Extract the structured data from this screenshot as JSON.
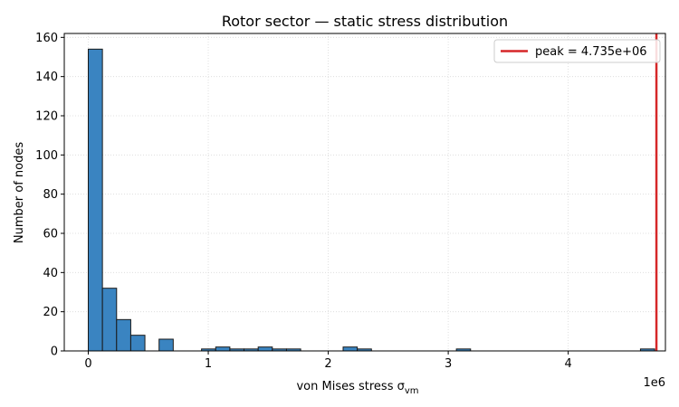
{
  "chart_data": {
    "type": "bar",
    "title": "Rotor sector — static stress distribution",
    "xlabel": "von Mises stress σ",
    "xlabel_subscript": "vm",
    "ylabel": "Number of nodes",
    "x_offset_label": "1e6",
    "xlim": [
      -200000,
      4810000
    ],
    "ylim": [
      0,
      162
    ],
    "x_ticks": [
      0,
      1000000,
      2000000,
      3000000,
      4000000
    ],
    "x_tick_labels": [
      "0",
      "1",
      "2",
      "3",
      "4"
    ],
    "y_ticks": [
      0,
      20,
      40,
      60,
      80,
      100,
      120,
      140,
      160
    ],
    "bin_width": 118000,
    "bins": [
      {
        "start": 0,
        "count": 154
      },
      {
        "start": 118000,
        "count": 32
      },
      {
        "start": 236000,
        "count": 16
      },
      {
        "start": 354000,
        "count": 8
      },
      {
        "start": 590000,
        "count": 6
      },
      {
        "start": 944000,
        "count": 1
      },
      {
        "start": 1062000,
        "count": 2
      },
      {
        "start": 1180000,
        "count": 1
      },
      {
        "start": 1298000,
        "count": 1
      },
      {
        "start": 1416000,
        "count": 2
      },
      {
        "start": 1534000,
        "count": 1
      },
      {
        "start": 1652000,
        "count": 1
      },
      {
        "start": 2124000,
        "count": 2
      },
      {
        "start": 2242000,
        "count": 1
      },
      {
        "start": 3068000,
        "count": 1
      },
      {
        "start": 4602000,
        "count": 1
      }
    ],
    "peak_line": {
      "value": 4735000,
      "label": "peak = 4.735e+06"
    },
    "grid": true,
    "legend_position": "top-right",
    "colors": {
      "bar": "#3a84c1",
      "bar_edge": "#1a1a1a",
      "peak_line": "#d62728",
      "grid": "#d9d9d9"
    }
  }
}
